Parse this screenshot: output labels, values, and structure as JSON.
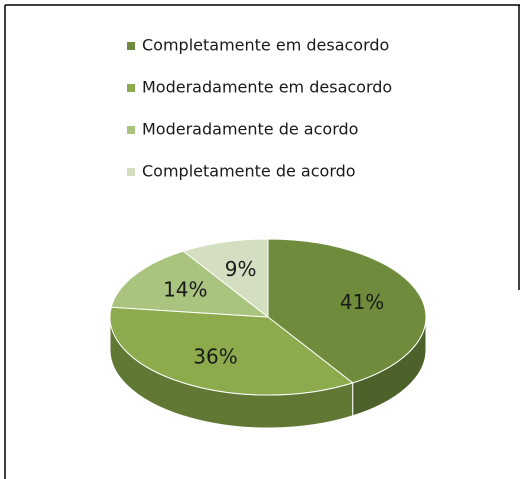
{
  "chart_data": {
    "type": "pie",
    "categories": [
      "Completamente em desacordo",
      "Moderadamente em desacordo",
      "Moderadamente de acordo",
      "Completamente de acordo"
    ],
    "values": [
      41,
      36,
      14,
      9
    ],
    "value_labels": [
      "41%",
      "36%",
      "14%",
      "9%"
    ],
    "colors": [
      "#6e8c3c",
      "#8bab4c",
      "#a9c47f",
      "#d3dfc0"
    ],
    "legend": "top"
  }
}
